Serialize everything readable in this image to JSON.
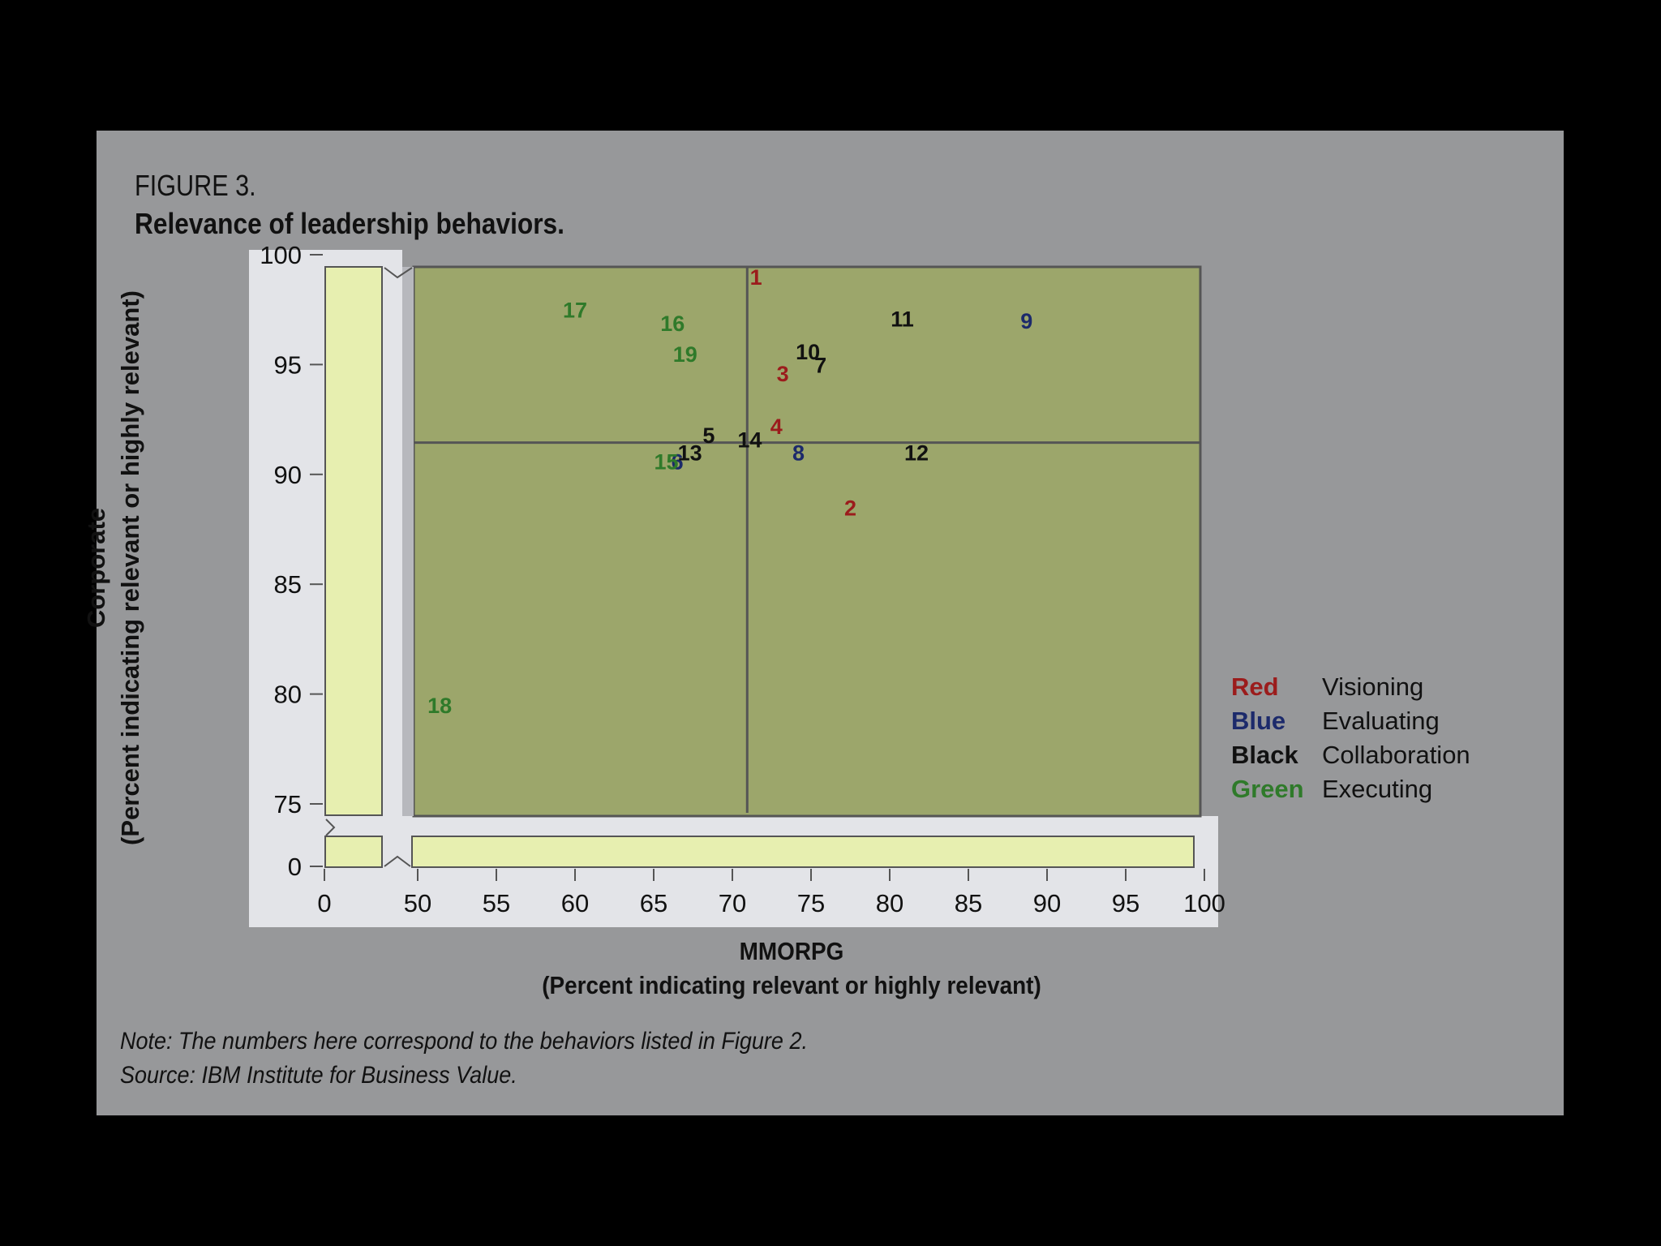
{
  "figure": {
    "label": "FIGURE 3.",
    "title": "Relevance of leadership behaviors."
  },
  "colors": {
    "panel": "#97989a",
    "plot_area": "#9ca66b",
    "axis_strip": "#e7efb0",
    "axis_panel": "#e3e4e8",
    "Red": "#9b1c1c",
    "Blue": "#1c2a6b",
    "Black": "#111111",
    "Green": "#2f7a2a"
  },
  "chart_data": {
    "type": "scatter",
    "title": "Relevance of leadership behaviors.",
    "xlabel": "MMORPG",
    "xlabel_sub": "(Percent indicating relevant or highly relevant)",
    "ylabel": "Corporate",
    "ylabel_sub": "(Percent indicating relevant or highly relevant)",
    "xlim": [
      50,
      100
    ],
    "ylim": [
      75,
      100
    ],
    "x_axis_break": true,
    "y_axis_break": true,
    "x_ticks": [
      0,
      50,
      55,
      60,
      65,
      70,
      75,
      80,
      85,
      90,
      95,
      100
    ],
    "y_ticks": [
      0,
      75,
      80,
      85,
      90,
      95,
      100
    ],
    "divider_x": 71.2,
    "divider_y": 92,
    "grid": false,
    "legend_position": "right",
    "legend": [
      {
        "color_name": "Red",
        "meaning": "Visioning"
      },
      {
        "color_name": "Blue",
        "meaning": "Evaluating"
      },
      {
        "color_name": "Black",
        "meaning": "Collaboration"
      },
      {
        "color_name": "Green",
        "meaning": "Executing"
      }
    ],
    "points": [
      {
        "label": "1",
        "x": 71.5,
        "y": 99,
        "category": "Red"
      },
      {
        "label": "2",
        "x": 77.5,
        "y": 88.5,
        "category": "Red"
      },
      {
        "label": "3",
        "x": 73.2,
        "y": 94.6,
        "category": "Red"
      },
      {
        "label": "4",
        "x": 72.8,
        "y": 92.2,
        "category": "Red"
      },
      {
        "label": "5",
        "x": 68.5,
        "y": 91.8,
        "category": "Black"
      },
      {
        "label": "6",
        "x": 66.5,
        "y": 90.6,
        "category": "Blue"
      },
      {
        "label": "7",
        "x": 75.6,
        "y": 95,
        "category": "Black"
      },
      {
        "label": "8",
        "x": 74.2,
        "y": 91,
        "category": "Blue"
      },
      {
        "label": "9",
        "x": 88.7,
        "y": 97,
        "category": "Blue"
      },
      {
        "label": "10",
        "x": 74.8,
        "y": 95.6,
        "category": "Black"
      },
      {
        "label": "11",
        "x": 80.8,
        "y": 97.1,
        "category": "Black"
      },
      {
        "label": "12",
        "x": 81.7,
        "y": 91,
        "category": "Black"
      },
      {
        "label": "13",
        "x": 67.3,
        "y": 91,
        "category": "Black"
      },
      {
        "label": "14",
        "x": 71.1,
        "y": 91.6,
        "category": "Black"
      },
      {
        "label": "15",
        "x": 65.8,
        "y": 90.6,
        "category": "Green"
      },
      {
        "label": "16",
        "x": 66.2,
        "y": 96.9,
        "category": "Green"
      },
      {
        "label": "17",
        "x": 60,
        "y": 97.5,
        "category": "Green"
      },
      {
        "label": "18",
        "x": 51.4,
        "y": 79.5,
        "category": "Green"
      },
      {
        "label": "19",
        "x": 67,
        "y": 95.5,
        "category": "Green"
      }
    ]
  },
  "notes": {
    "note": "Note: The numbers here correspond to the behaviors listed in Figure 2.",
    "source": "Source: IBM Institute for Business Value."
  }
}
